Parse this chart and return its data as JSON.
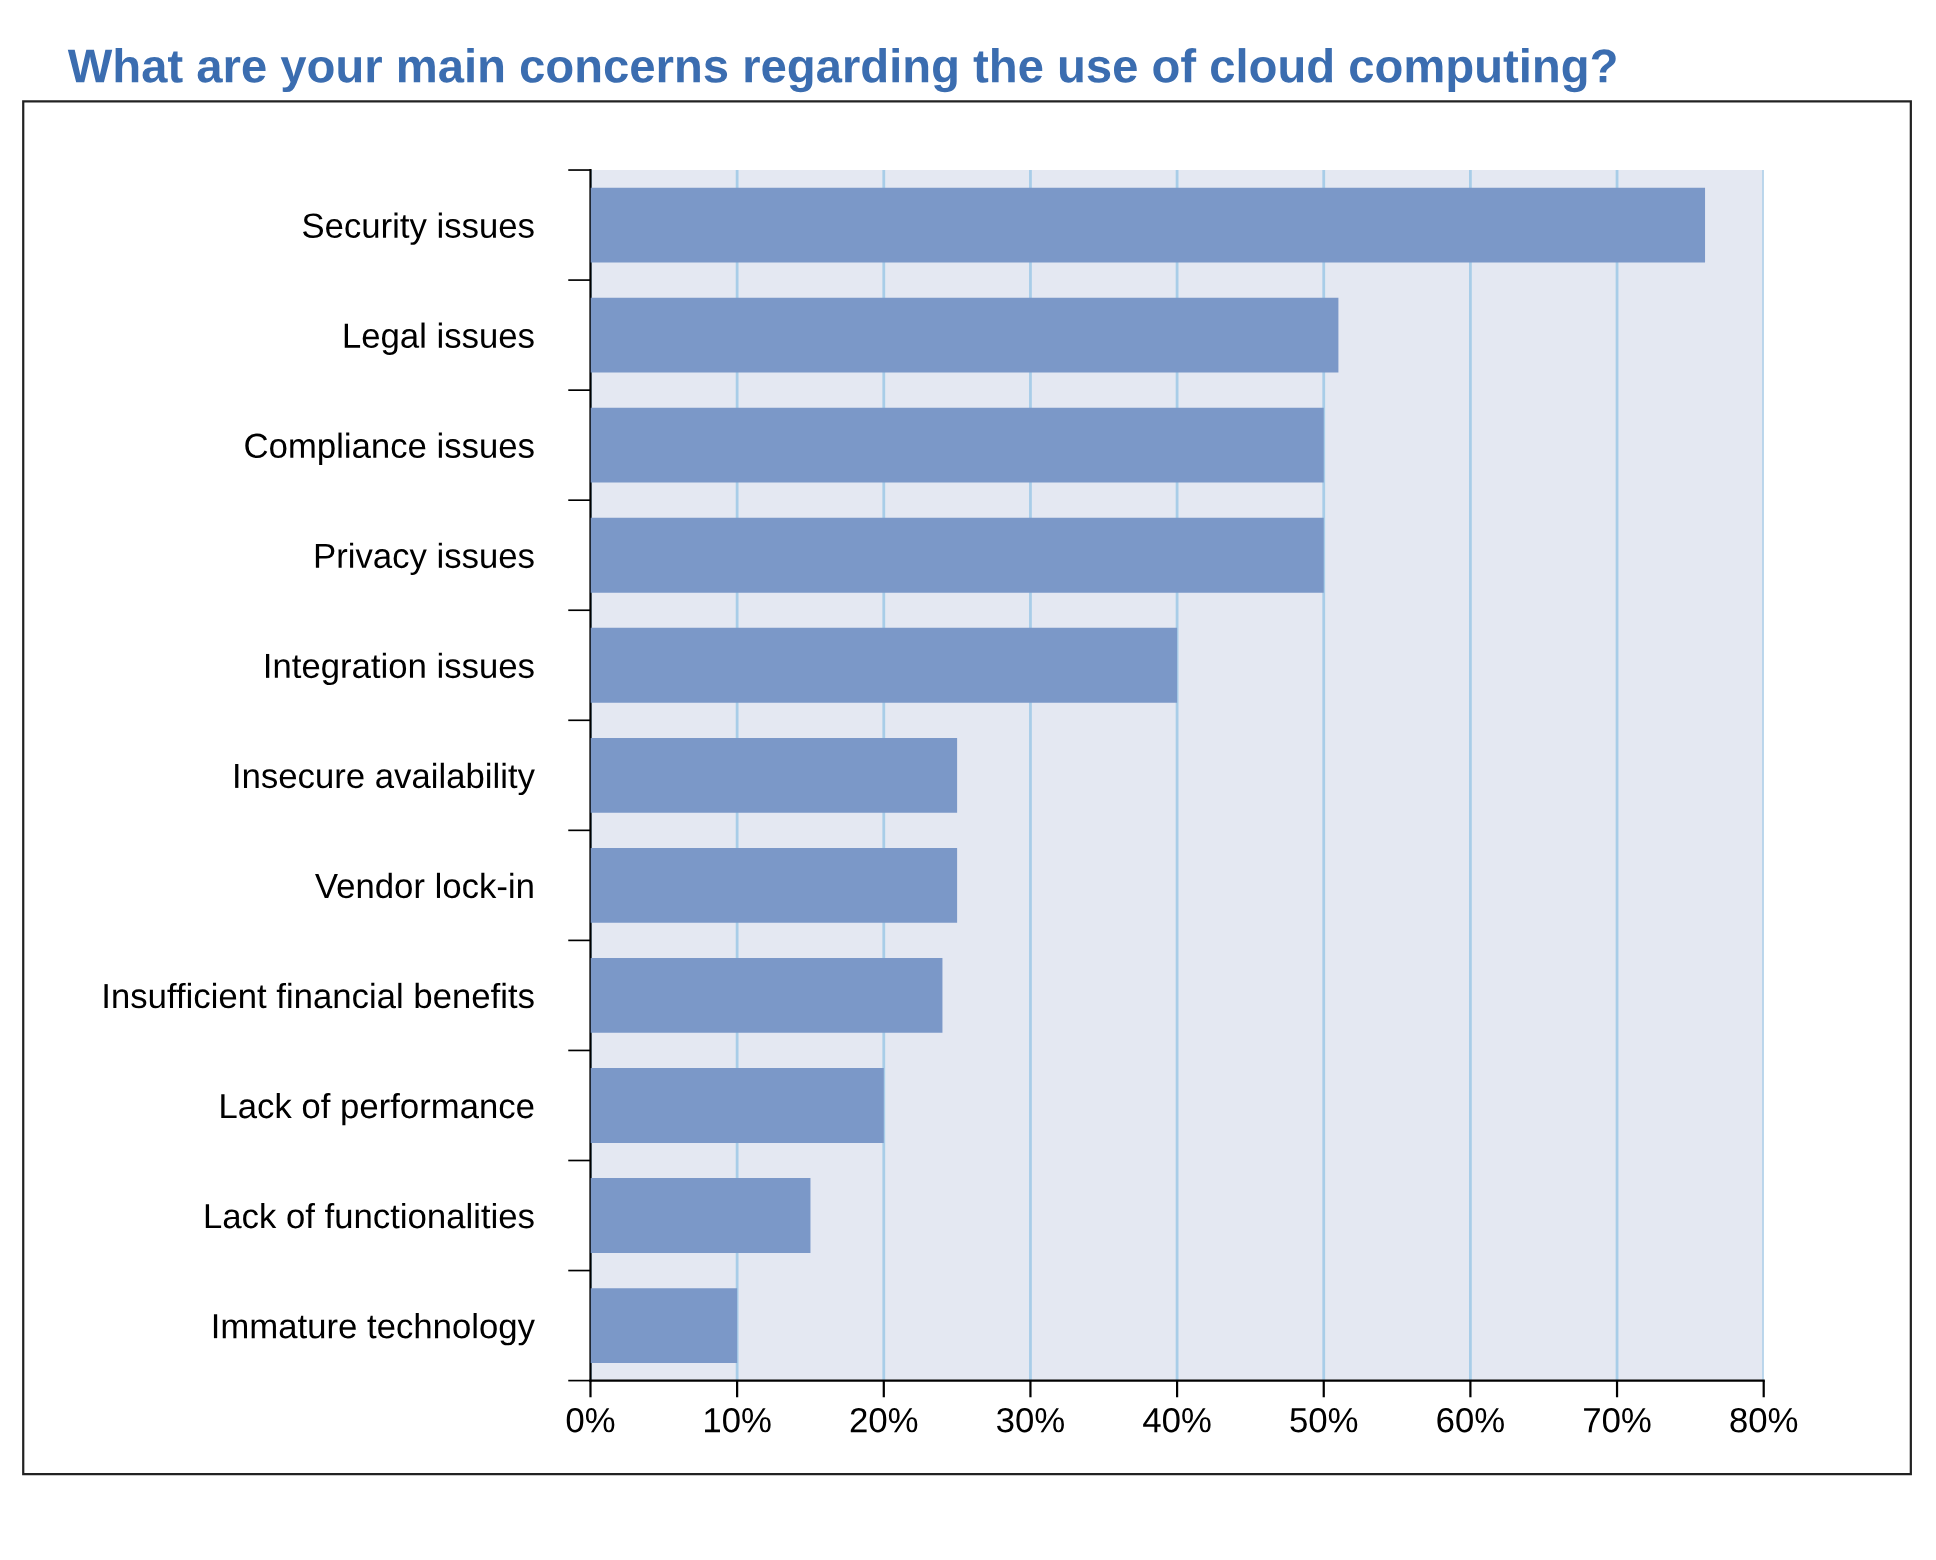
{
  "chart_data": {
    "type": "bar",
    "orientation": "horizontal",
    "title": "What are your main concerns regarding the use of cloud computing?",
    "categories": [
      "Security issues",
      "Legal issues",
      "Compliance issues",
      "Privacy issues",
      "Integration issues",
      "Insecure availability",
      "Vendor lock-in",
      "Insufficient financial benefits",
      "Lack of performance",
      "Lack of functionalities",
      "Immature technology"
    ],
    "values": [
      76,
      51,
      50,
      50,
      40,
      25,
      25,
      24,
      20,
      15,
      10
    ],
    "color": "#7b98c8",
    "xlim": [
      0,
      80
    ],
    "xticks": [
      {
        "value": 0,
        "label": "0%"
      },
      {
        "value": 10,
        "label": "10%"
      },
      {
        "value": 20,
        "label": "20%"
      },
      {
        "value": 30,
        "label": "30%"
      },
      {
        "value": 40,
        "label": "40%"
      },
      {
        "value": 50,
        "label": "50%"
      },
      {
        "value": 60,
        "label": "60%"
      },
      {
        "value": 70,
        "label": "70%"
      },
      {
        "value": 80,
        "label": "80%"
      }
    ],
    "grid": "x",
    "legend": false
  }
}
